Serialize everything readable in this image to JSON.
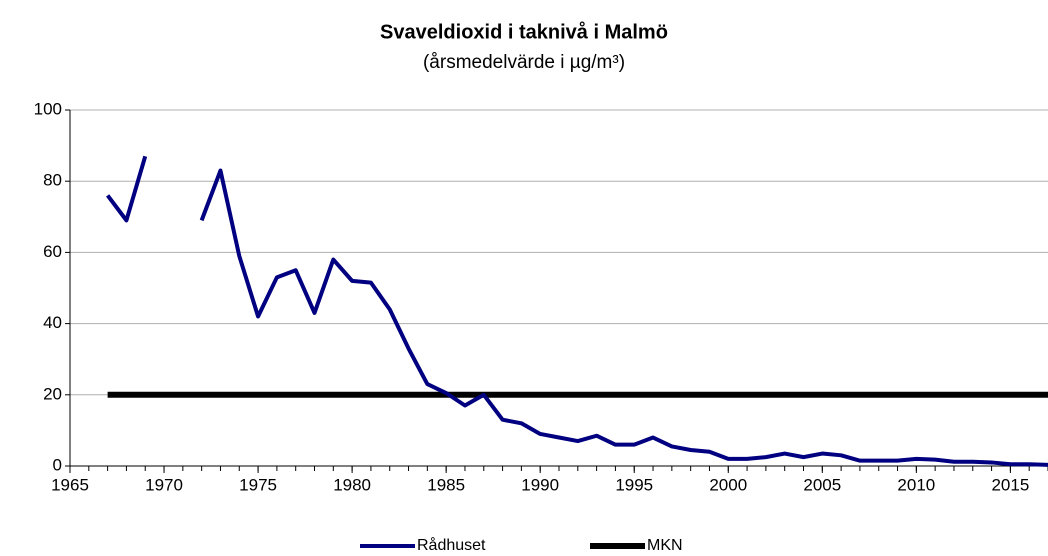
{
  "chart_data": {
    "type": "line",
    "title": "Svaveldioxid i taknivå i Malmö",
    "subtitle": "(årsmedelvärde i µg/m³)",
    "x": [
      1967,
      1968,
      1969,
      1970,
      1971,
      1972,
      1973,
      1974,
      1975,
      1976,
      1977,
      1978,
      1979,
      1980,
      1981,
      1982,
      1983,
      1984,
      1985,
      1986,
      1987,
      1988,
      1989,
      1990,
      1991,
      1992,
      1993,
      1994,
      1995,
      1996,
      1997,
      1998,
      1999,
      2000,
      2001,
      2002,
      2003,
      2004,
      2005,
      2006,
      2007,
      2008,
      2009,
      2010,
      2011,
      2012,
      2013,
      2014,
      2015,
      2016,
      2017
    ],
    "series": [
      {
        "name": "Rådhuset",
        "color": "#000080",
        "values": [
          76,
          69,
          87,
          null,
          null,
          69,
          83,
          59,
          42,
          53,
          55,
          43,
          58,
          52,
          51.5,
          44,
          33,
          23,
          20.5,
          17,
          20,
          13,
          12,
          9,
          8,
          7,
          8.5,
          6,
          6,
          8,
          5.5,
          4.5,
          4,
          2,
          2,
          2.5,
          3.5,
          2.5,
          3.5,
          3,
          1.5,
          1.5,
          1.5,
          2,
          1.8,
          1.2,
          1.2,
          1,
          0.5,
          0.5,
          0.3
        ]
      },
      {
        "name": "MKN",
        "color": "#000000",
        "values": [
          20,
          20,
          20,
          20,
          20,
          20,
          20,
          20,
          20,
          20,
          20,
          20,
          20,
          20,
          20,
          20,
          20,
          20,
          20,
          20,
          20,
          20,
          20,
          20,
          20,
          20,
          20,
          20,
          20,
          20,
          20,
          20,
          20,
          20,
          20,
          20,
          20,
          20,
          20,
          20,
          20,
          20,
          20,
          20,
          20,
          20,
          20,
          20,
          20,
          20,
          20
        ]
      }
    ],
    "xlim": [
      1965,
      2017
    ],
    "xticks": [
      1965,
      1970,
      1975,
      1980,
      1985,
      1990,
      1995,
      2000,
      2005,
      2010,
      2015
    ],
    "ylim": [
      0,
      100
    ],
    "yticks": [
      0,
      20,
      40,
      60,
      80,
      100
    ],
    "grid": true,
    "legend": "bottom"
  }
}
